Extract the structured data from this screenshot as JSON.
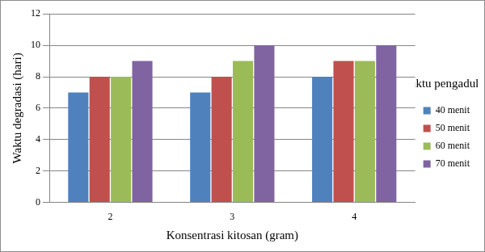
{
  "chart_data": {
    "type": "bar",
    "categories": [
      "2",
      "3",
      "4"
    ],
    "x_label": "Konsentrasi kitosan (gram)",
    "y_label": "Waktu degradasi (hari)",
    "legend_title": "Waktu pengadukan",
    "series": [
      {
        "name": "40 menit",
        "color": "#4f81bd",
        "values": [
          7,
          7,
          8
        ]
      },
      {
        "name": "50 menit",
        "color": "#c0504d",
        "values": [
          8,
          8,
          9
        ]
      },
      {
        "name": "60 menit",
        "color": "#9bbb59",
        "values": [
          8,
          9,
          9
        ]
      },
      {
        "name": "70 menit",
        "color": "#8064a2",
        "values": [
          9,
          10,
          10
        ]
      }
    ],
    "ylim": [
      0,
      12
    ],
    "yticks": [
      0,
      2,
      4,
      6,
      8,
      10,
      12
    ],
    "grid": true,
    "legend": "right"
  }
}
